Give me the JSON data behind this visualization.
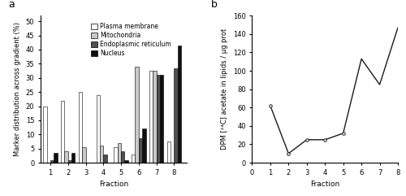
{
  "fractions": [
    1,
    2,
    3,
    4,
    5,
    6,
    7,
    8
  ],
  "plasma_membrane": [
    20,
    22,
    25,
    24,
    5.5,
    3,
    32.5,
    7.5
  ],
  "mitochondria": [
    0,
    4,
    5.5,
    6,
    7,
    34,
    32.5,
    0
  ],
  "endoplasmic_reticulum": [
    1,
    1,
    0,
    3,
    4,
    8.5,
    31,
    33.5
  ],
  "nucleus": [
    3.5,
    3.5,
    0,
    0,
    1,
    12,
    31,
    41.5
  ],
  "bar_colors": {
    "plasma_membrane": "#ffffff",
    "mitochondria": "#c8c8c8",
    "endoplasmic_reticulum": "#505050",
    "nucleus": "#101010"
  },
  "bar_edgecolors": {
    "plasma_membrane": "#000000",
    "mitochondria": "#000000",
    "endoplasmic_reticulum": "#000000",
    "nucleus": "#000000"
  },
  "legend_labels": [
    "Plasma membrane",
    "Mitochondria",
    "Endoplasmic reticulum",
    "Nucleus"
  ],
  "ylabel_a": "Marker distribution across gradient (%)",
  "xlabel_a": "Fraction",
  "ylim_a": [
    0,
    52
  ],
  "yticks_a": [
    0,
    5,
    10,
    15,
    20,
    25,
    30,
    35,
    40,
    45,
    50
  ],
  "panel_a_label": "a",
  "line_x": [
    1,
    2,
    3,
    4,
    5,
    6,
    7,
    8
  ],
  "line_y": [
    62,
    10,
    25,
    25,
    32,
    113,
    85,
    147
  ],
  "marker_x": [
    1,
    2,
    3,
    4,
    5
  ],
  "marker_y": [
    62,
    10,
    25,
    25,
    32
  ],
  "ylabel_b": "DPM [¹⁴C] acetate in lipids / μg prot",
  "xlabel_b": "Fraction",
  "xlim_b": [
    0,
    8
  ],
  "ylim_b": [
    0,
    160
  ],
  "yticks_b": [
    0,
    20,
    40,
    60,
    80,
    100,
    120,
    140,
    160
  ],
  "xticks_b": [
    0,
    1,
    2,
    3,
    4,
    5,
    6,
    7,
    8
  ],
  "panel_b_label": "b",
  "line_color": "#1a1a1a",
  "background_color": "#ffffff",
  "bar_width": 0.2,
  "legend_fontsize": 5.5,
  "axis_fontsize": 6.5,
  "tick_fontsize": 6
}
